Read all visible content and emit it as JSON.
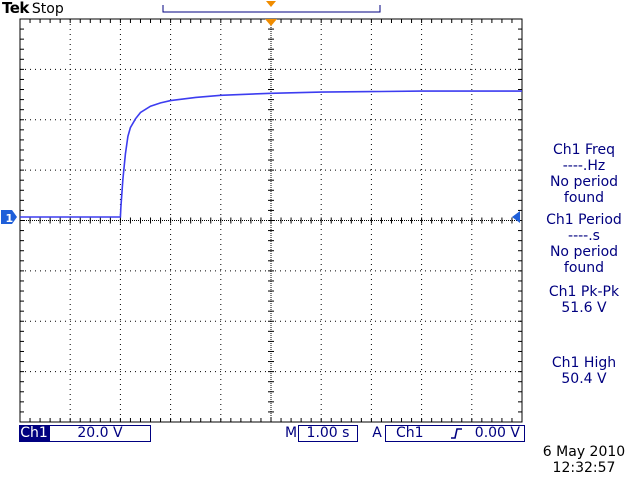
{
  "header": {
    "brand": "Tek",
    "acq_state": "Stop"
  },
  "channel_marker": {
    "label": "1",
    "color": "#1f5fd9"
  },
  "trace_color": "#3d3df0",
  "measurements": [
    {
      "title": "Ch1 Freq",
      "value": "----.Hz",
      "note": [
        "No period",
        "found"
      ]
    },
    {
      "title": "Ch1 Period",
      "value": "----.s",
      "note": [
        "No period",
        "found"
      ]
    },
    {
      "title": "Ch1 Pk-Pk",
      "value": "51.6 V",
      "note": []
    },
    {
      "title": "Ch1 High",
      "value": "50.4 V",
      "note": []
    }
  ],
  "bottom_bar": {
    "channel": "Ch1",
    "volts_per_div": "20.0 V",
    "time_label": "M",
    "time_per_div": "1.00 s",
    "trigger_label": "A",
    "trigger_source": "Ch1",
    "trigger_level": "0.00 V"
  },
  "timestamp": {
    "date": "6 May 2010",
    "time": "12:32:57"
  },
  "waveform": {
    "type": "line",
    "x_unit": "s",
    "y_unit": "V",
    "xlim": [
      0,
      10
    ],
    "ylim": [
      -80,
      80
    ],
    "points": [
      [
        0.0,
        0.0
      ],
      [
        2.0,
        0.0
      ],
      [
        2.01,
        4
      ],
      [
        2.05,
        15
      ],
      [
        2.1,
        25
      ],
      [
        2.15,
        32
      ],
      [
        2.2,
        35.5
      ],
      [
        2.3,
        39
      ],
      [
        2.4,
        41.5
      ],
      [
        2.6,
        44
      ],
      [
        2.8,
        45.3
      ],
      [
        3.0,
        46.2
      ],
      [
        3.5,
        47.5
      ],
      [
        4.0,
        48.3
      ],
      [
        5.0,
        49.1
      ],
      [
        6.0,
        49.6
      ],
      [
        7.0,
        49.8
      ],
      [
        8.0,
        50.0
      ],
      [
        9.0,
        50.0
      ],
      [
        10.0,
        50.0
      ]
    ]
  }
}
